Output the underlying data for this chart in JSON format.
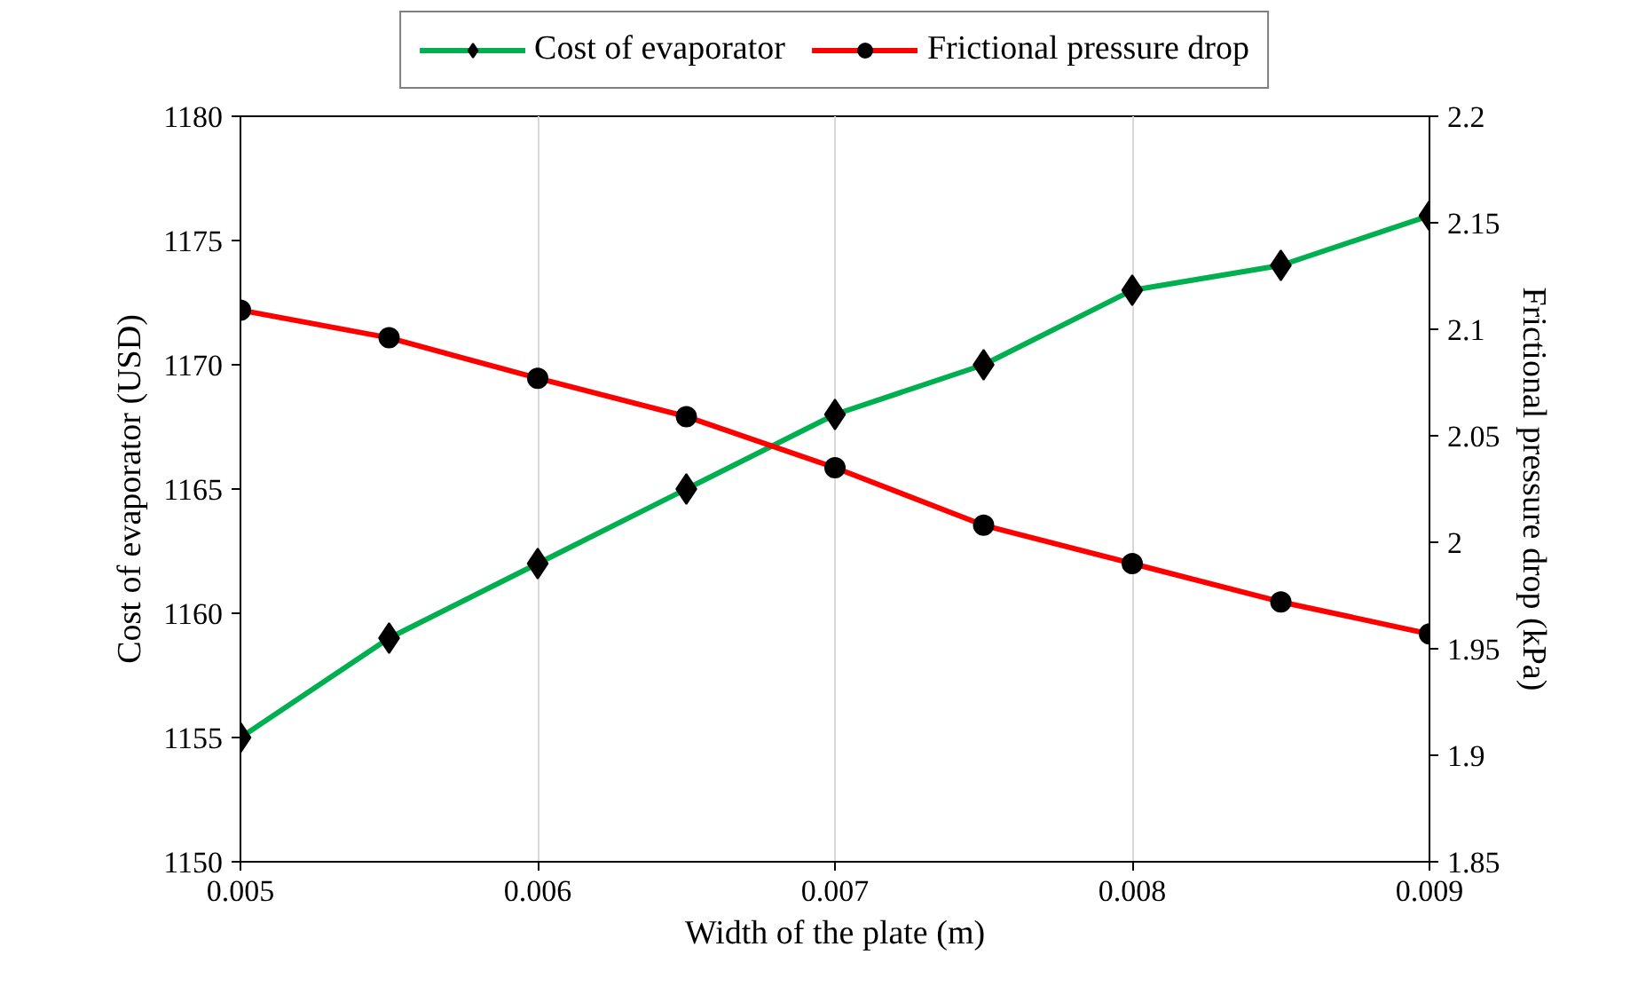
{
  "chart_data": {
    "type": "line",
    "xlabel": "Width of the plate (m)",
    "ylabel": "Cost of evaporator (USD)",
    "y2label": "Frictional pressure drop (kPa)",
    "x": [
      0.005,
      0.0055,
      0.006,
      0.0065,
      0.007,
      0.0075,
      0.008,
      0.0085,
      0.009
    ],
    "series": [
      {
        "name": "Cost of evaporator",
        "color": "#00b050",
        "marker": "diamond",
        "values": [
          1155,
          1159,
          1162,
          1165,
          1168,
          1170,
          1173,
          1174,
          1176
        ]
      },
      {
        "name": "Frictional pressure drop",
        "color": "#ff0000",
        "marker": "circle",
        "axis": "y2",
        "values": [
          2.109,
          2.096,
          2.077,
          2.059,
          2.035,
          2.008,
          1.99,
          1.972,
          1.957
        ]
      }
    ],
    "xlim": [
      0.005,
      0.009
    ],
    "xticks": [
      0.005,
      0.006,
      0.007,
      0.008,
      0.009
    ],
    "ylim": [
      1150,
      1180
    ],
    "yticks": [
      1150,
      1155,
      1160,
      1165,
      1170,
      1175,
      1180
    ],
    "y2lim": [
      1.85,
      2.2
    ],
    "y2ticks": [
      1.85,
      1.9,
      1.95,
      2,
      2.05,
      2.1,
      2.15,
      2.2
    ],
    "grid": "x",
    "legend": "top",
    "line_style": "solid"
  }
}
